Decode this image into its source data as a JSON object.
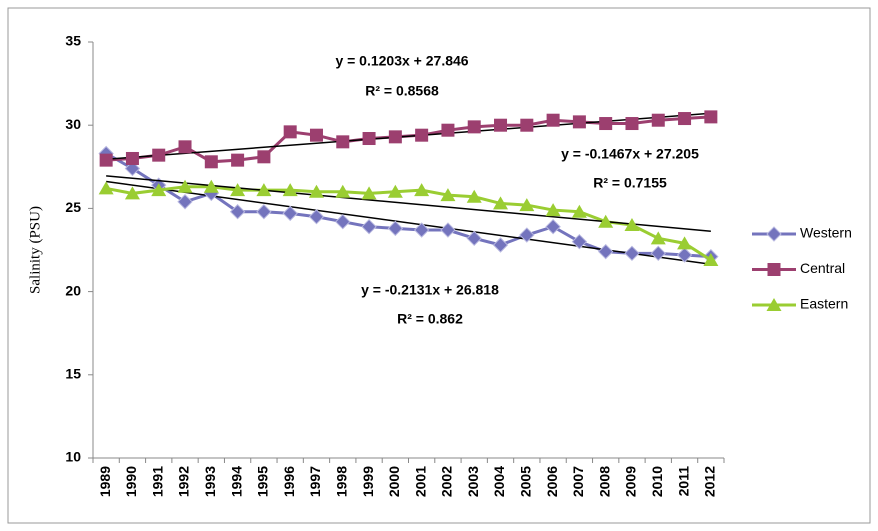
{
  "chart_data": {
    "type": "line",
    "y_label": "Salinity (PSU)",
    "categories": [
      "1989",
      "1990",
      "1991",
      "1992",
      "1993",
      "1994",
      "1995",
      "1996",
      "1997",
      "1998",
      "1999",
      "2000",
      "2001",
      "2002",
      "2003",
      "2004",
      "2005",
      "2006",
      "2007",
      "2008",
      "2009",
      "2010",
      "2011",
      "2012"
    ],
    "series": [
      {
        "name": "Western",
        "color": "#7474bd",
        "marker": "diamond",
        "values": [
          28.3,
          27.4,
          26.4,
          25.4,
          25.9,
          24.8,
          24.8,
          24.7,
          24.5,
          24.2,
          23.9,
          23.8,
          23.7,
          23.7,
          23.2,
          22.8,
          23.4,
          23.9,
          23.0,
          22.4,
          22.3,
          22.3,
          22.2,
          22.1
        ]
      },
      {
        "name": "Central",
        "color": "#9c3f6f",
        "marker": "square",
        "values": [
          27.9,
          28.0,
          28.2,
          28.7,
          27.8,
          27.9,
          28.1,
          29.6,
          29.4,
          29.0,
          29.2,
          29.3,
          29.4,
          29.7,
          29.9,
          30.0,
          30.0,
          30.3,
          30.2,
          30.1,
          30.1,
          30.3,
          30.4,
          30.5
        ]
      },
      {
        "name": "Eastern",
        "color": "#9acd32",
        "marker": "triangle",
        "values": [
          26.2,
          25.9,
          26.1,
          26.3,
          26.3,
          26.1,
          26.1,
          26.1,
          26.0,
          26.0,
          25.9,
          26.0,
          26.1,
          25.8,
          25.7,
          25.3,
          25.2,
          24.9,
          24.8,
          24.2,
          24.0,
          23.2,
          22.9,
          21.9
        ]
      }
    ],
    "trendlines": true,
    "annotations": [
      "y = 0.1203x + 27.846",
      "R² = 0.8568",
      "y = -0.1467x + 27.205",
      "R² = 0.7155",
      "y = -0.2131x + 26.818",
      "R² = 0.862"
    ],
    "ylim": [
      10,
      35
    ],
    "yticks": [
      10,
      15,
      20,
      25,
      30,
      35
    ],
    "legend": "right"
  }
}
